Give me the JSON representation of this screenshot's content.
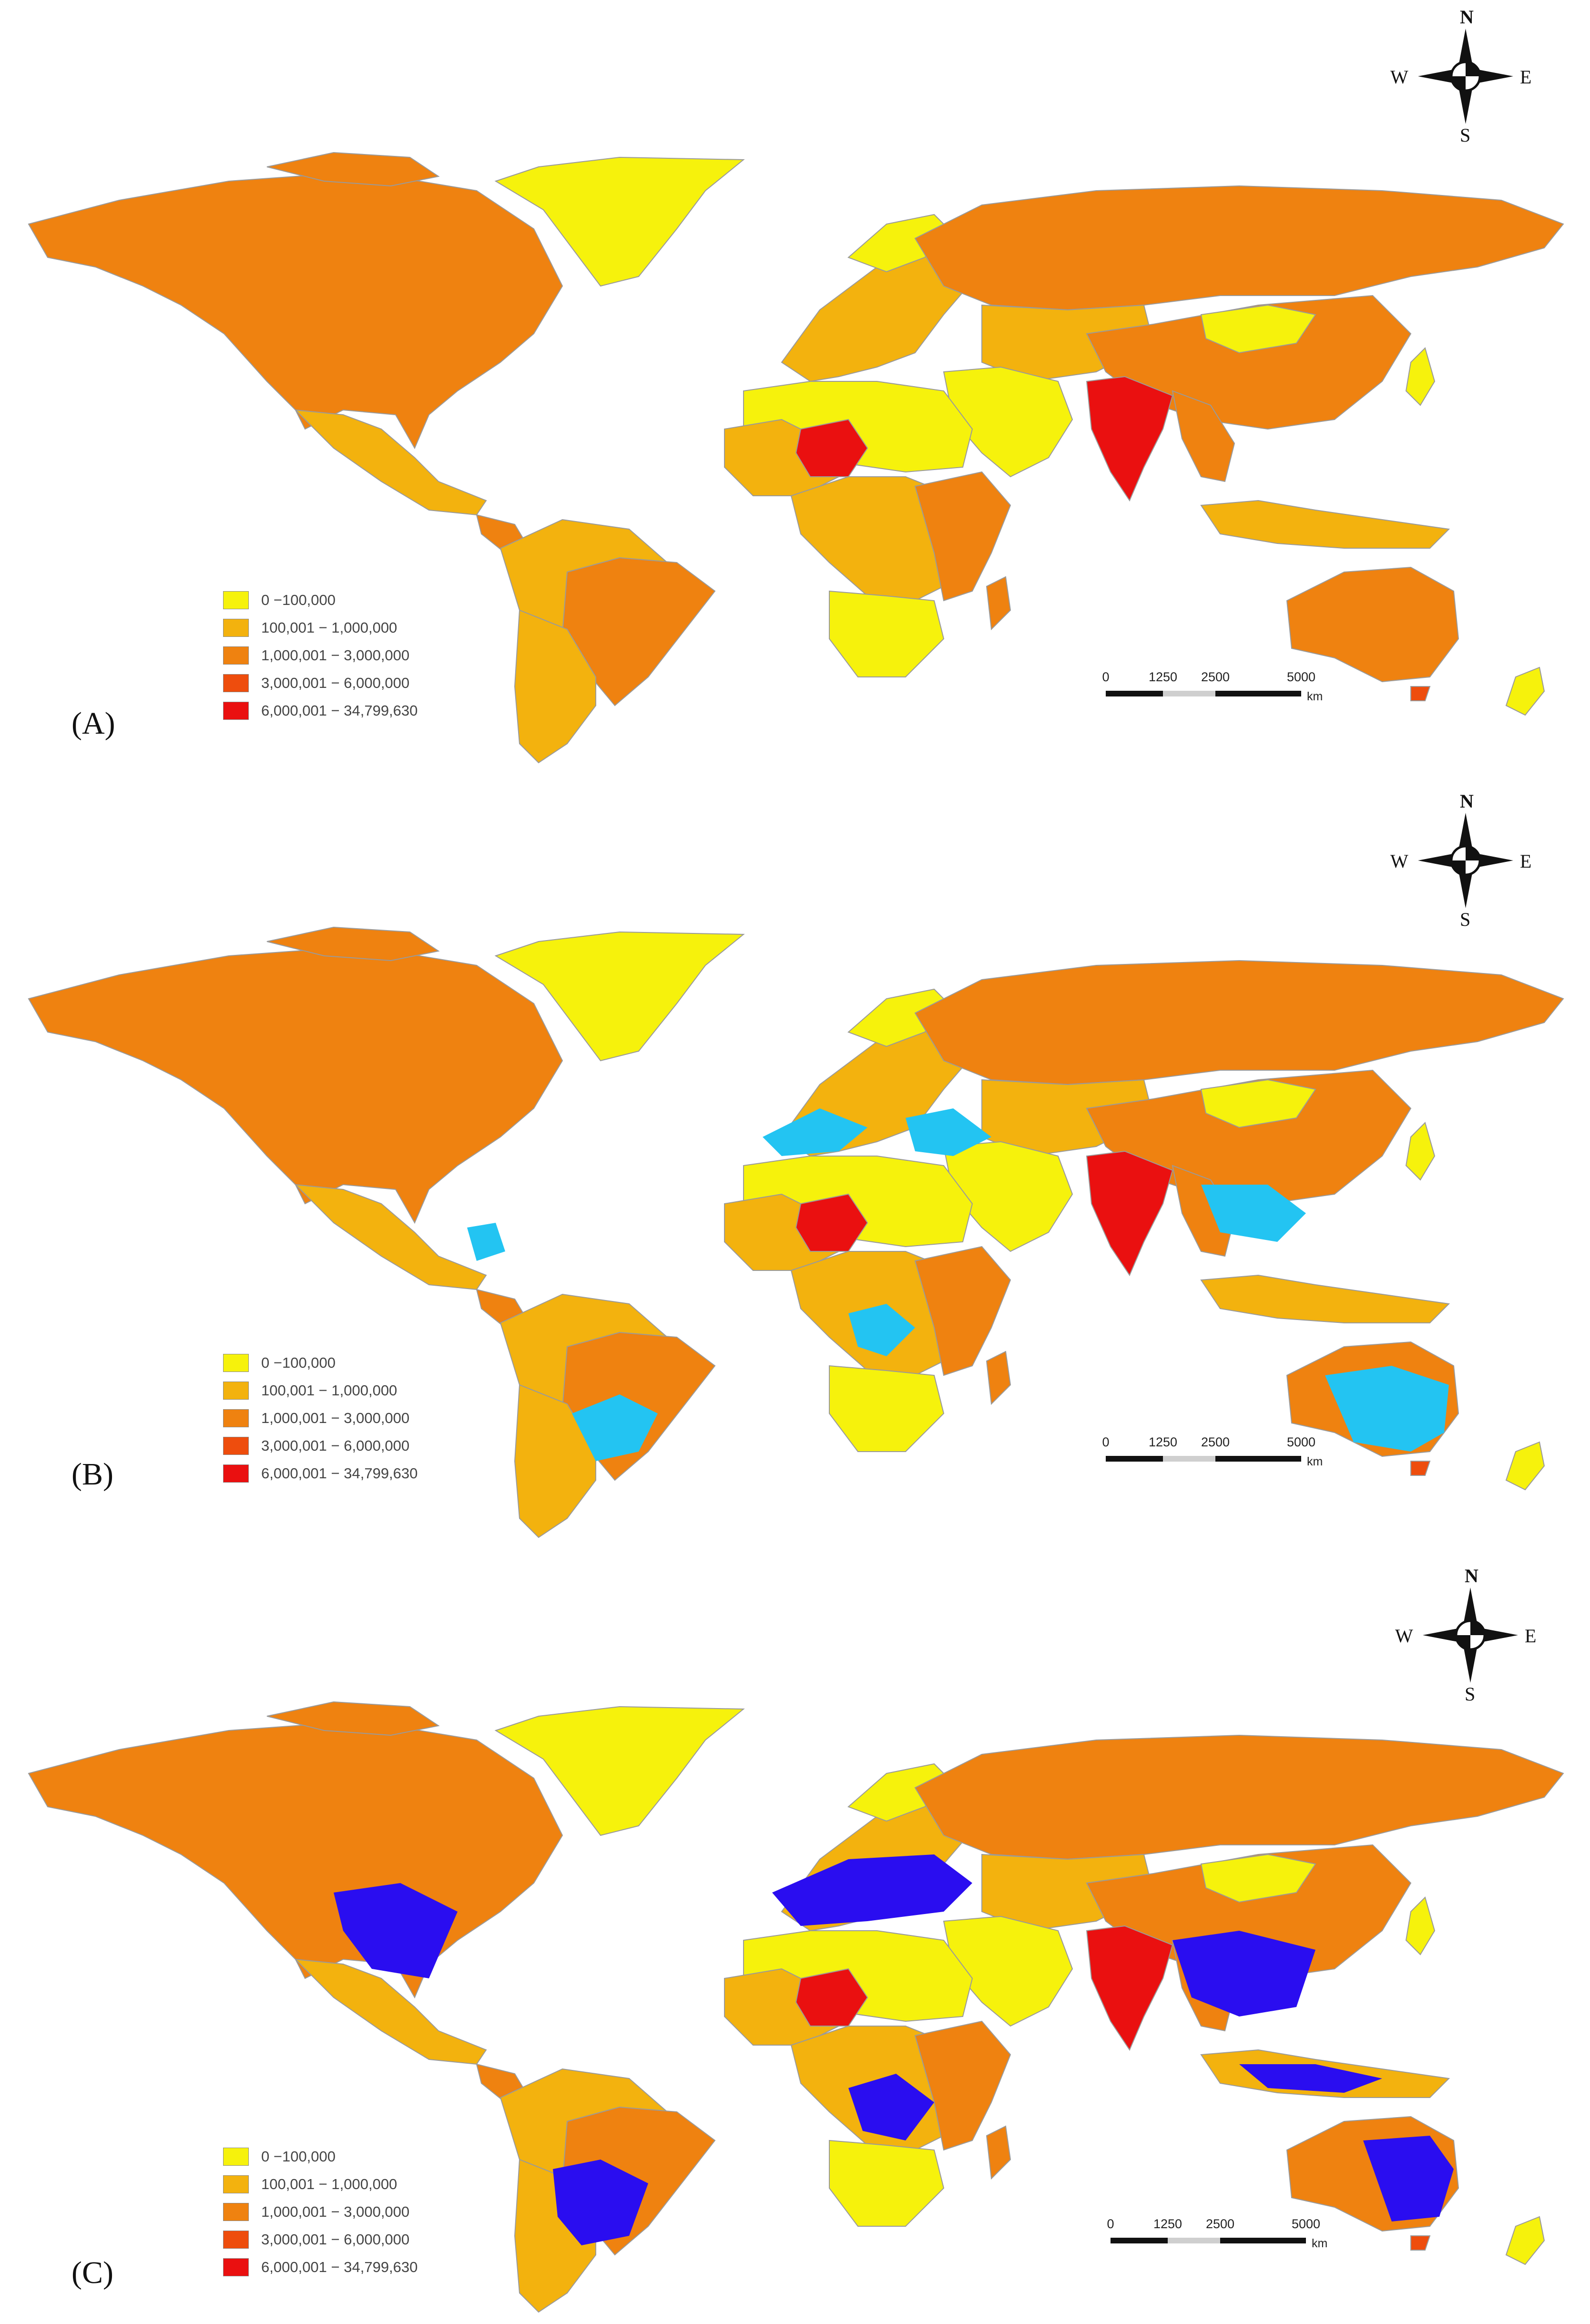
{
  "colors": {
    "yellow": "#f6f20c",
    "light_orange": "#f3b20e",
    "orange": "#ef8210",
    "red_orange": "#ee4d0d",
    "red": "#ea1010",
    "cyan": "#23c4f2",
    "blue": "#2a0df0",
    "boundary": "#9a9a9a"
  },
  "compass": {
    "north": "N",
    "south": "S",
    "east": "E",
    "west": "W"
  },
  "legend": [
    {
      "label": "0 −100,000",
      "color": "#f6f20c"
    },
    {
      "label": "100,001 − 1,000,000",
      "color": "#f3b20e"
    },
    {
      "label": "1,000,001 − 3,000,000",
      "color": "#ef8210"
    },
    {
      "label": "3,000,001 − 6,000,000",
      "color": "#ee4d0d"
    },
    {
      "label": "6,000,001 − 34,799,630",
      "color": "#ea1010"
    }
  ],
  "scale_bar": {
    "ticks": [
      "0",
      "1250",
      "2500",
      "5000"
    ],
    "unit": "km"
  },
  "panels": [
    {
      "label": "(A)",
      "overlay": "none"
    },
    {
      "label": "(B)",
      "overlay": "cyan"
    },
    {
      "label": "(C)",
      "overlay": "blue"
    }
  ]
}
